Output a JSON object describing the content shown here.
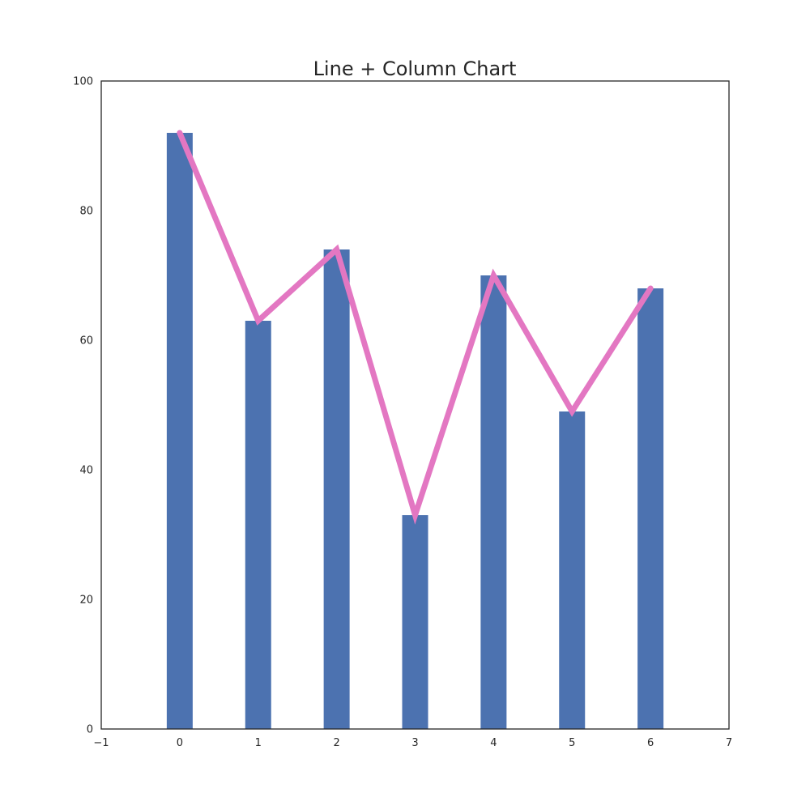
{
  "chart_data": {
    "type": "bar",
    "title": "Line + Column Chart",
    "xlabel": "",
    "ylabel": "",
    "x": [
      0,
      1,
      2,
      3,
      4,
      5,
      6
    ],
    "xlim": [
      -1,
      7
    ],
    "ylim": [
      0,
      100
    ],
    "x_ticks": [
      "−1",
      "0",
      "1",
      "2",
      "3",
      "4",
      "5",
      "6",
      "7"
    ],
    "y_ticks": [
      "0",
      "20",
      "40",
      "60",
      "80",
      "100"
    ],
    "grid": false,
    "legend": "none",
    "series": [
      {
        "type": "bar",
        "values": [
          92,
          63,
          74,
          33,
          70,
          49,
          68
        ],
        "color": "#4c72b0"
      },
      {
        "type": "line",
        "values": [
          92,
          63,
          74,
          33,
          70,
          49,
          68
        ],
        "color": "#e377c2"
      }
    ]
  }
}
